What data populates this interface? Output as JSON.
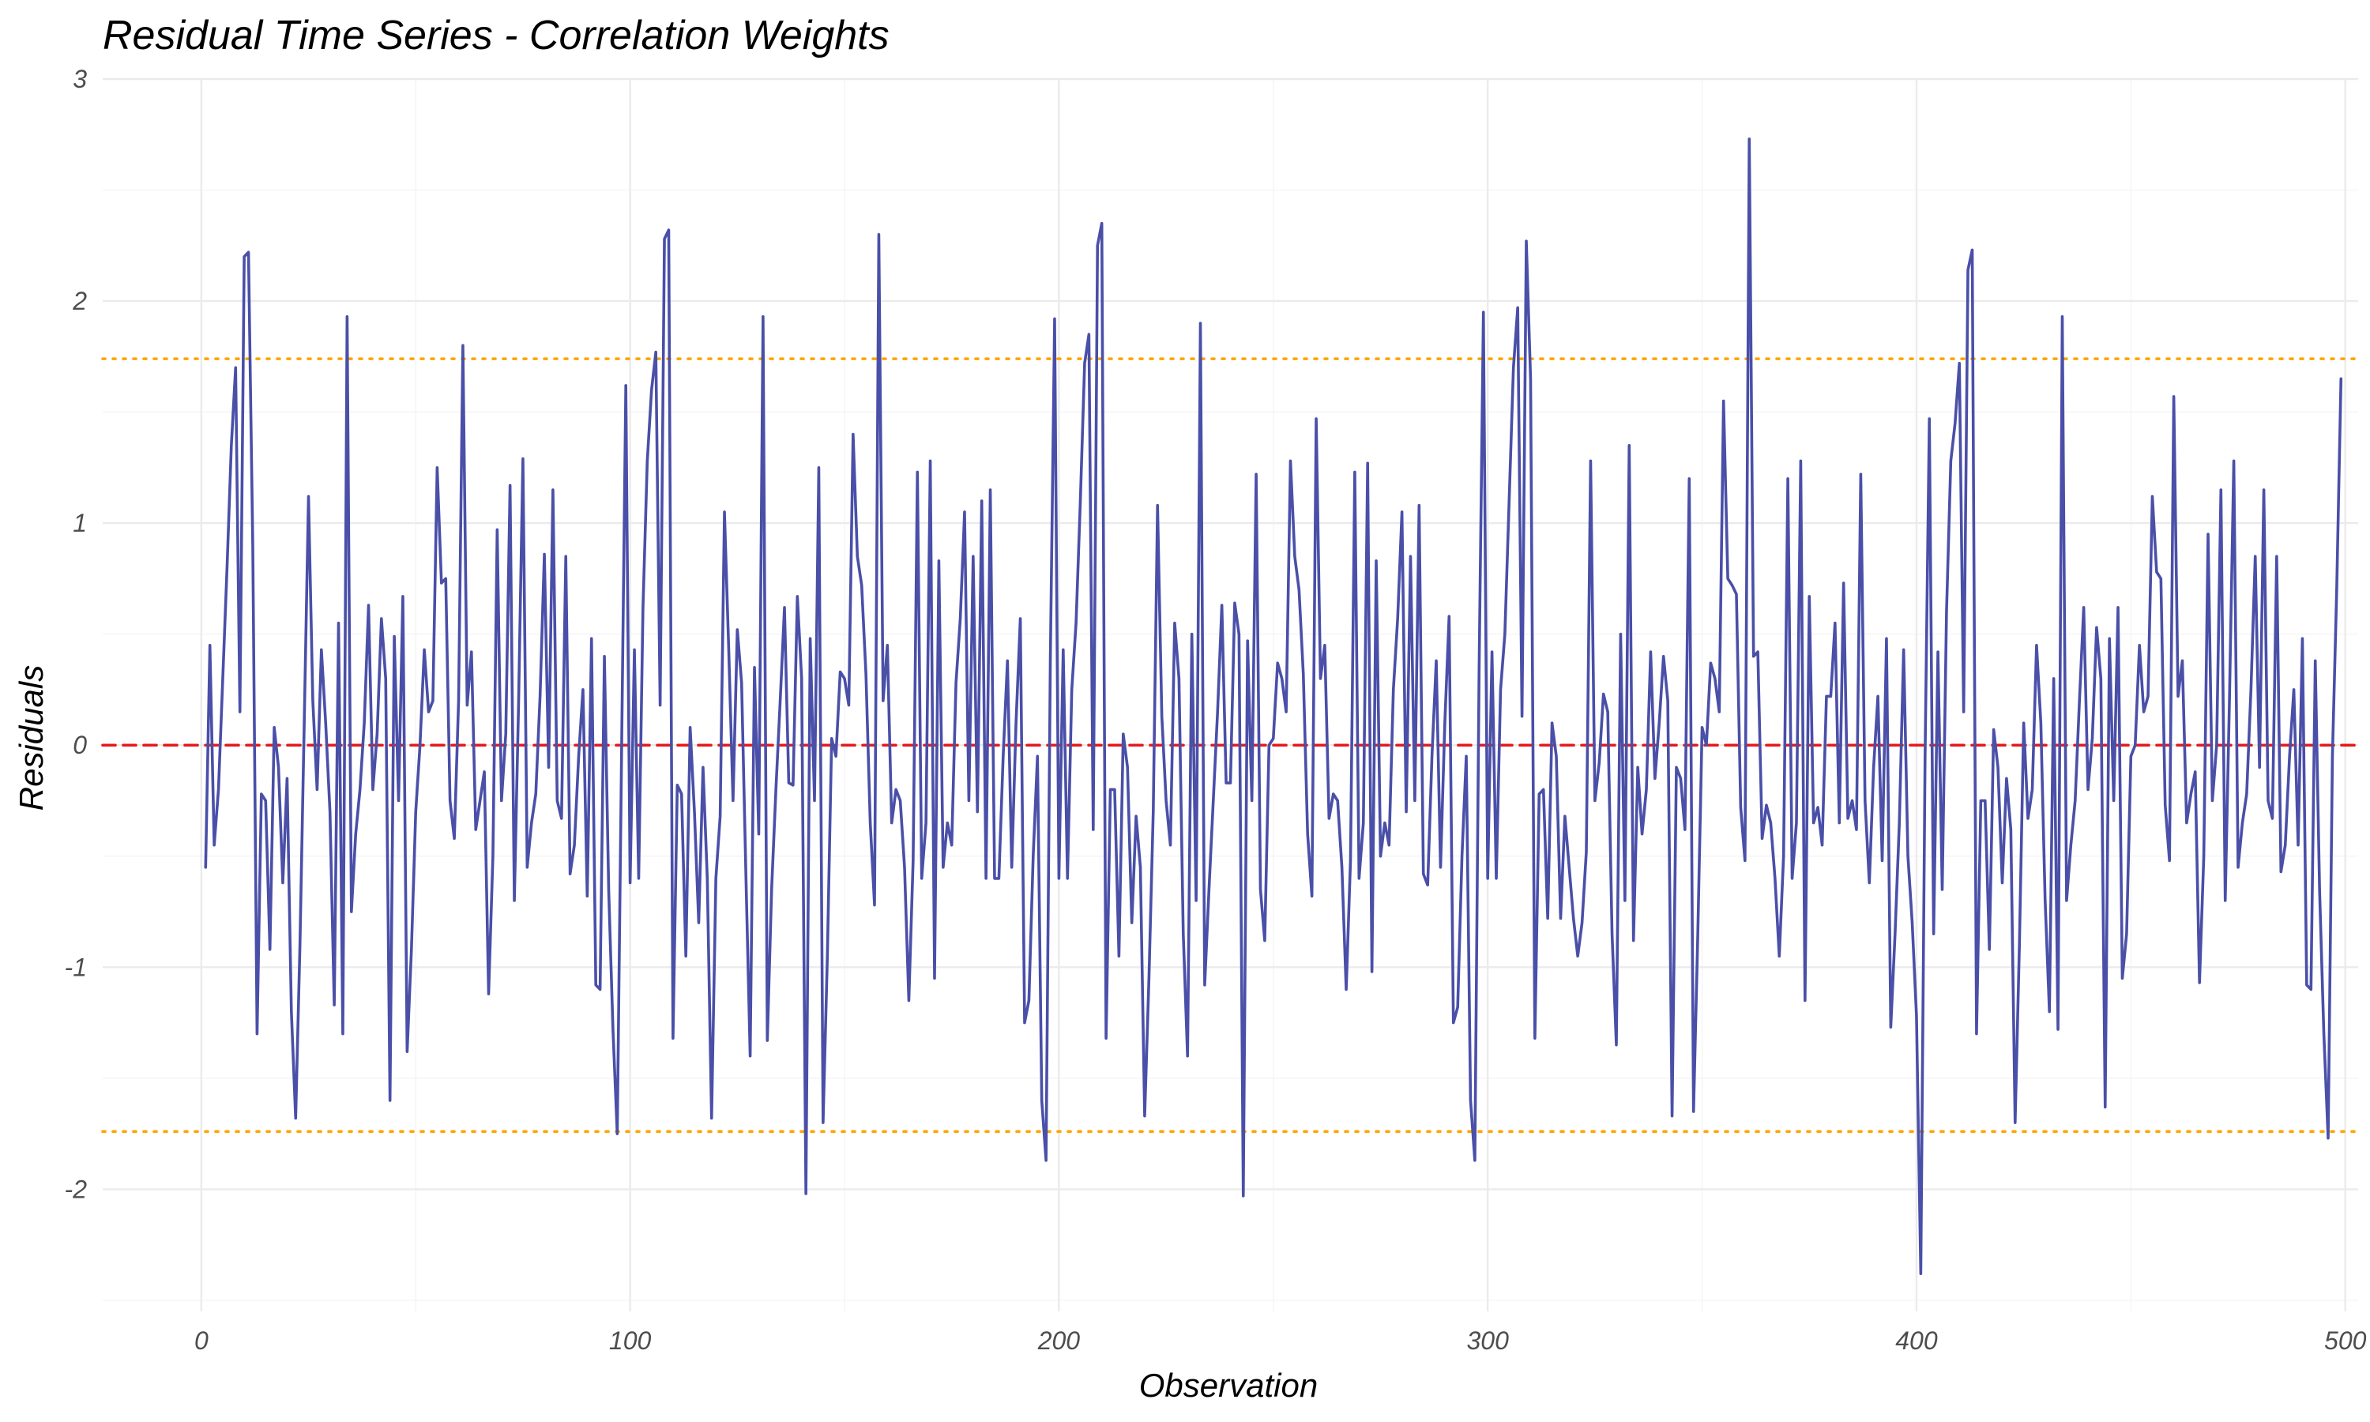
{
  "chart_data": {
    "type": "line",
    "title": "Residual Time Series - Correlation Weights",
    "xlabel": "Observation",
    "ylabel": "Residuals",
    "xlim": [
      -23,
      503
    ],
    "ylim": [
      -2.55,
      3.0
    ],
    "x_ticks": [
      0,
      100,
      200,
      300,
      400,
      500
    ],
    "x_tick_labels": [
      "0",
      "100",
      "200",
      "300",
      "400",
      "500"
    ],
    "y_ticks": [
      -2,
      -1,
      0,
      1,
      2,
      3
    ],
    "y_tick_labels": [
      "-2",
      "-1",
      "0",
      "1",
      "2",
      "3"
    ],
    "grid": true,
    "legend": "none",
    "series": [
      {
        "line_color": "#4a4fa8",
        "x_start": 1,
        "values": [
          -0.55,
          0.45,
          -0.45,
          -0.2,
          0.3,
          0.8,
          1.35,
          1.7,
          0.15,
          2.2,
          2.22,
          0.9,
          -1.3,
          -0.22,
          -0.25,
          -0.92,
          0.08,
          -0.1,
          -0.62,
          -0.15,
          -1.2,
          -1.68,
          -0.9,
          0.1,
          1.12,
          0.2,
          -0.2,
          0.43,
          0.1,
          -0.3,
          -1.17,
          0.55,
          -1.3,
          1.93,
          -0.75,
          -0.4,
          -0.2,
          0.1,
          0.63,
          -0.2,
          0.05,
          0.57,
          0.3,
          -1.6,
          0.49,
          -0.25,
          0.67,
          -1.38,
          -0.92,
          -0.3,
          0.0,
          0.43,
          0.15,
          0.2,
          1.25,
          0.73,
          0.75,
          -0.25,
          -0.42,
          0.2,
          1.8,
          0.18,
          0.42,
          -0.38,
          -0.25,
          -0.12,
          -1.12,
          -0.5,
          0.97,
          -0.25,
          0.05,
          1.17,
          -0.7,
          0.2,
          1.29,
          -0.55,
          -0.35,
          -0.22,
          0.22,
          0.86,
          -0.1,
          1.15,
          -0.25,
          -0.33,
          0.85,
          -0.58,
          -0.45,
          -0.05,
          0.25,
          -0.68,
          0.48,
          -1.08,
          -1.1,
          0.4,
          -0.65,
          -1.28,
          -1.75,
          -0.05,
          1.62,
          -0.62,
          0.43,
          -0.6,
          0.62,
          1.28,
          1.6,
          1.77,
          0.18,
          2.28,
          2.32,
          -1.32,
          -0.18,
          -0.22,
          -0.95,
          0.08,
          -0.3,
          -0.8,
          -0.1,
          -0.6,
          -1.68,
          -0.6,
          -0.32,
          1.05,
          0.43,
          -0.25,
          0.52,
          0.28,
          -0.58,
          -1.4,
          0.35,
          -0.4,
          1.93,
          -1.33,
          -0.65,
          -0.2,
          0.2,
          0.62,
          -0.17,
          -0.18,
          0.67,
          0.3,
          -2.02,
          0.48,
          -0.25,
          1.25,
          -1.7,
          -0.95,
          0.03,
          -0.05,
          0.33,
          0.3,
          0.18,
          1.4,
          0.85,
          0.72,
          0.32,
          -0.35,
          -0.72,
          2.3,
          0.2,
          0.45,
          -0.35,
          -0.2,
          -0.25,
          -0.55,
          -1.15,
          -0.52,
          1.23,
          -0.6,
          -0.35,
          1.28,
          -1.05,
          0.83,
          -0.55,
          -0.35,
          -0.45,
          0.28,
          0.57,
          1.05,
          -0.25,
          0.85,
          -0.3,
          1.1,
          -0.6,
          1.15,
          -0.6,
          -0.6,
          -0.05,
          0.38,
          -0.55,
          0.1,
          0.57,
          -1.25,
          -1.15,
          -0.5,
          -0.05,
          -1.6,
          -1.87,
          0.38,
          1.92,
          -0.6,
          0.43,
          -0.6,
          0.25,
          0.55,
          1.1,
          1.72,
          1.85,
          -0.38,
          2.25,
          2.35,
          -1.32,
          -0.2,
          -0.2,
          -0.95,
          0.05,
          -0.1,
          -0.8,
          -0.32,
          -0.55,
          -1.67,
          -1.05,
          -0.3,
          1.08,
          0.13,
          -0.25,
          -0.45,
          0.55,
          0.3,
          -0.85,
          -1.4,
          0.5,
          -0.7,
          1.9,
          -1.08,
          -0.65,
          -0.25,
          0.15,
          0.63,
          -0.17,
          -0.17,
          0.64,
          0.5,
          -2.03,
          0.47,
          -0.25,
          1.22,
          -0.65,
          -0.88,
          0.0,
          0.03,
          0.37,
          0.3,
          0.15,
          1.28,
          0.85,
          0.7,
          0.32,
          -0.4,
          -0.68,
          1.47,
          0.3,
          0.45,
          -0.33,
          -0.22,
          -0.25,
          -0.55,
          -1.1,
          -0.52,
          1.23,
          -0.6,
          -0.35,
          1.27,
          -1.02,
          0.83,
          -0.5,
          -0.35,
          -0.45,
          0.25,
          0.57,
          1.05,
          -0.3,
          0.85,
          -0.25,
          1.08,
          -0.58,
          -0.63,
          -0.05,
          0.38,
          -0.55,
          0.1,
          0.58,
          -1.25,
          -1.18,
          -0.5,
          -0.05,
          -1.6,
          -1.87,
          0.35,
          1.95,
          -0.6,
          0.42,
          -0.6,
          0.25,
          0.5,
          1.1,
          1.7,
          1.97,
          0.13,
          2.27,
          1.65,
          -1.32,
          -0.22,
          -0.2,
          -0.78,
          0.1,
          -0.05,
          -0.78,
          -0.32,
          -0.55,
          -0.78,
          -0.95,
          -0.8,
          -0.48,
          1.28,
          -0.25,
          -0.08,
          0.23,
          0.15,
          -0.85,
          -1.35,
          0.5,
          -0.7,
          1.35,
          -0.88,
          -0.1,
          -0.4,
          -0.2,
          0.42,
          -0.15,
          0.1,
          0.4,
          0.2,
          -1.67,
          -0.1,
          -0.15,
          -0.38,
          1.2,
          -1.65,
          -0.85,
          0.08,
          0.0,
          0.37,
          0.3,
          0.15,
          1.55,
          0.75,
          0.72,
          0.68,
          -0.28,
          -0.52,
          2.73,
          0.4,
          0.42,
          -0.42,
          -0.27,
          -0.35,
          -0.6,
          -0.95,
          -0.5,
          1.2,
          -0.6,
          -0.35,
          1.28,
          -1.15,
          0.67,
          -0.35,
          -0.28,
          -0.45,
          0.22,
          0.22,
          0.55,
          -0.35,
          0.73,
          -0.33,
          -0.25,
          -0.38,
          1.22,
          -0.25,
          -0.62,
          -0.1,
          0.22,
          -0.52,
          0.48,
          -1.27,
          -0.85,
          -0.35,
          0.43,
          -0.5,
          -0.8,
          -1.22,
          -2.38,
          -0.05,
          1.47,
          -0.85,
          0.42,
          -0.65,
          0.6,
          1.28,
          1.45,
          1.72,
          0.15,
          2.14,
          2.23,
          -1.3,
          -0.25,
          -0.25,
          -0.92,
          0.07,
          -0.1,
          -0.62,
          -0.15,
          -0.38,
          -1.7,
          -0.9,
          0.1,
          -0.33,
          -0.2,
          0.45,
          0.1,
          -0.7,
          -1.2,
          0.3,
          -1.28,
          1.93,
          -0.7,
          -0.45,
          -0.25,
          0.2,
          0.62,
          -0.2,
          0.03,
          0.53,
          0.3,
          -1.63,
          0.48,
          -0.25,
          0.62,
          -1.05,
          -0.85,
          -0.05,
          0.0,
          0.45,
          0.15,
          0.22,
          1.12,
          0.78,
          0.75,
          -0.27,
          -0.52,
          1.57,
          0.22,
          0.38,
          -0.35,
          -0.22,
          -0.12,
          -1.07,
          -0.5,
          0.95,
          -0.25,
          0.0,
          1.15,
          -0.7,
          0.22,
          1.28,
          -0.55,
          -0.35,
          -0.22,
          0.25,
          0.85,
          -0.1,
          1.15,
          -0.25,
          -0.33,
          0.85,
          -0.57,
          -0.45,
          -0.05,
          0.25,
          -0.45,
          0.48,
          -1.08,
          -1.1,
          0.38,
          -0.65,
          -1.3,
          -1.77,
          -0.05,
          0.7,
          1.65
        ]
      }
    ],
    "reference_lines": [
      {
        "y": 0,
        "color": "#e41a1c",
        "style": "dashed"
      },
      {
        "y": 1.74,
        "color": "#ffa500",
        "style": "dotted"
      },
      {
        "y": -1.74,
        "color": "#ffa500",
        "style": "dotted"
      }
    ]
  }
}
